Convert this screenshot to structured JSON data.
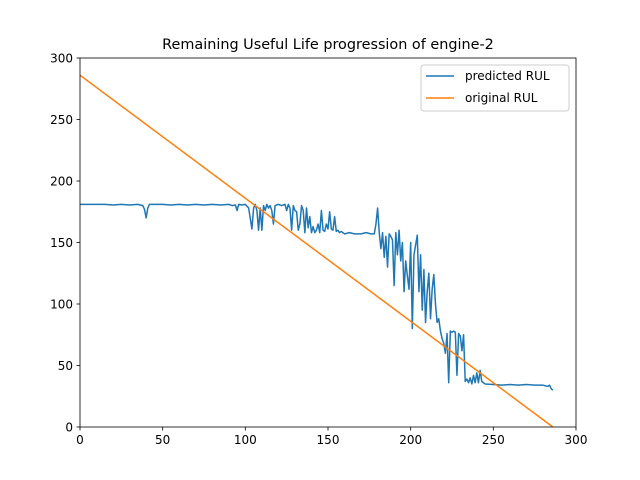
{
  "chart_data": {
    "type": "line",
    "title": "Remaining Useful Life progression of engine-2",
    "xlabel": "",
    "ylabel": "",
    "xlim": [
      0,
      300
    ],
    "ylim": [
      0,
      300
    ],
    "xticks": [
      0,
      50,
      100,
      150,
      200,
      250,
      300
    ],
    "yticks": [
      0,
      50,
      100,
      150,
      200,
      250,
      300
    ],
    "grid": false,
    "legend_position": "top-right",
    "series": [
      {
        "name": "predicted RUL",
        "color": "#1f77b4",
        "points": [
          [
            0,
            181
          ],
          [
            5,
            181
          ],
          [
            10,
            181
          ],
          [
            15,
            181
          ],
          [
            20,
            180.5
          ],
          [
            25,
            181
          ],
          [
            30,
            180.5
          ],
          [
            35,
            181
          ],
          [
            38,
            180
          ],
          [
            39,
            177
          ],
          [
            40,
            170
          ],
          [
            41,
            178
          ],
          [
            42,
            181
          ],
          [
            45,
            181
          ],
          [
            50,
            181
          ],
          [
            55,
            180.5
          ],
          [
            60,
            181
          ],
          [
            65,
            180.5
          ],
          [
            70,
            181
          ],
          [
            75,
            180.5
          ],
          [
            80,
            181
          ],
          [
            85,
            180.5
          ],
          [
            90,
            181
          ],
          [
            92,
            180
          ],
          [
            94,
            180.5
          ],
          [
            95,
            176
          ],
          [
            96,
            181
          ],
          [
            98,
            180.5
          ],
          [
            100,
            181
          ],
          [
            102,
            178
          ],
          [
            104,
            161
          ],
          [
            105,
            178
          ],
          [
            106,
            181
          ],
          [
            107,
            176
          ],
          [
            108,
            160
          ],
          [
            109,
            178
          ],
          [
            110,
            160
          ],
          [
            111,
            180
          ],
          [
            112,
            176
          ],
          [
            113,
            181
          ],
          [
            114,
            178
          ],
          [
            115,
            180
          ],
          [
            116,
            176
          ],
          [
            117,
            165
          ],
          [
            118,
            180
          ],
          [
            120,
            181
          ],
          [
            122,
            180
          ],
          [
            124,
            181
          ],
          [
            125,
            176
          ],
          [
            126,
            181
          ],
          [
            127,
            178
          ],
          [
            128,
            160
          ],
          [
            129,
            180
          ],
          [
            130,
            176
          ],
          [
            131,
            175
          ],
          [
            132,
            160
          ],
          [
            133,
            165
          ],
          [
            134,
            180
          ],
          [
            135,
            176
          ],
          [
            136,
            158
          ],
          [
            137,
            178
          ],
          [
            138,
            162
          ],
          [
            139,
            171
          ],
          [
            140,
            158
          ],
          [
            141,
            163
          ],
          [
            142,
            158
          ],
          [
            143,
            160
          ],
          [
            144,
            165
          ],
          [
            145,
            158
          ],
          [
            146,
            176
          ],
          [
            147,
            160
          ],
          [
            148,
            159
          ],
          [
            149,
            165
          ],
          [
            150,
            161
          ],
          [
            151,
            175
          ],
          [
            152,
            161
          ],
          [
            153,
            160
          ],
          [
            154,
            171
          ],
          [
            155,
            159
          ],
          [
            156,
            160
          ],
          [
            157,
            158
          ],
          [
            158,
            159
          ],
          [
            160,
            157
          ],
          [
            163,
            158
          ],
          [
            166,
            157
          ],
          [
            170,
            157
          ],
          [
            173,
            158
          ],
          [
            176,
            157
          ],
          [
            178,
            157
          ],
          [
            179,
            165
          ],
          [
            180,
            178
          ],
          [
            181,
            158
          ],
          [
            182,
            145
          ],
          [
            183,
            158
          ],
          [
            184,
            138
          ],
          [
            185,
            155
          ],
          [
            186,
            130
          ],
          [
            187,
            157
          ],
          [
            188,
            155
          ],
          [
            189,
            152
          ],
          [
            190,
            115
          ],
          [
            191,
            158
          ],
          [
            192,
            140
          ],
          [
            193,
            160
          ],
          [
            194,
            135
          ],
          [
            195,
            150
          ],
          [
            196,
            110
          ],
          [
            197,
            135
          ],
          [
            198,
            123
          ],
          [
            199,
            112
          ],
          [
            200,
            150
          ],
          [
            201,
            80
          ],
          [
            202,
            140
          ],
          [
            203,
            148
          ],
          [
            204,
            156
          ],
          [
            205,
            110
          ],
          [
            206,
            140
          ],
          [
            207,
            95
          ],
          [
            208,
            128
          ],
          [
            209,
            85
          ],
          [
            210,
            110
          ],
          [
            211,
            125
          ],
          [
            212,
            88
          ],
          [
            213,
            112
          ],
          [
            214,
            124
          ],
          [
            215,
            100
          ],
          [
            216,
            85
          ],
          [
            217,
            88
          ],
          [
            218,
            78
          ],
          [
            219,
            72
          ],
          [
            220,
            68
          ],
          [
            221,
            60
          ],
          [
            222,
            76
          ],
          [
            223,
            36
          ],
          [
            224,
            78
          ],
          [
            225,
            77
          ],
          [
            226,
            78
          ],
          [
            227,
            77
          ],
          [
            228,
            42
          ],
          [
            229,
            76
          ],
          [
            230,
            74
          ],
          [
            231,
            62
          ],
          [
            232,
            75
          ],
          [
            233,
            37
          ],
          [
            234,
            39
          ],
          [
            235,
            36
          ],
          [
            236,
            40
          ],
          [
            237,
            35
          ],
          [
            238,
            42
          ],
          [
            239,
            36
          ],
          [
            240,
            44
          ],
          [
            241,
            36
          ],
          [
            242,
            46
          ],
          [
            243,
            37
          ],
          [
            244,
            36
          ],
          [
            245,
            35
          ],
          [
            250,
            34.5
          ],
          [
            255,
            34
          ],
          [
            260,
            34.5
          ],
          [
            265,
            34
          ],
          [
            270,
            34.5
          ],
          [
            275,
            34
          ],
          [
            280,
            34
          ],
          [
            283,
            33
          ],
          [
            284,
            34
          ],
          [
            285,
            31
          ],
          [
            286,
            30
          ]
        ]
      },
      {
        "name": "original RUL",
        "color": "#ff7f0e",
        "points": [
          [
            0,
            286
          ],
          [
            286,
            0
          ]
        ]
      }
    ]
  }
}
